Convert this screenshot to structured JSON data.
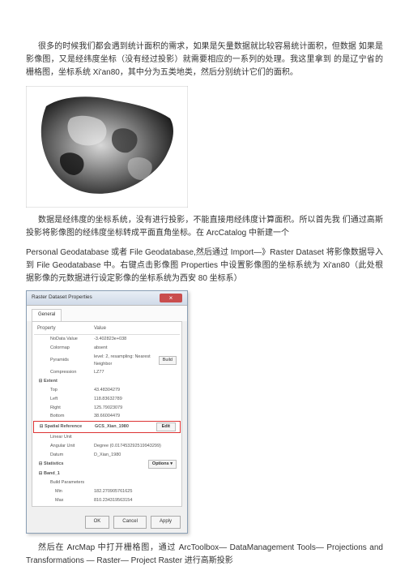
{
  "para1": "很多的时候我们都会遇到统计面积的需求，如果是矢量数据就比较容易统计面积，但数据 如果是影像图，又是经纬度坐标（没有经过投影）就需要相应的一系列的处理。我这里拿到 的是辽宁省的栅格图，坐标系统 Xi'an80，其中分为五类地类，然后分别统计它们的面积。",
  "para2_a": "数据是经纬度的坐标系统，没有进行投影，不能直接用经纬度计算面积。所以首先我 们通过高斯投影将影像图的经纬度坐标转成平面直角坐标。在 ArcCatalog 中新建一个",
  "para2_b": "Personal Geodatabase 或者 File Geodatabase,然后通过 Import—》Raster Dataset 将影像数据导入到 File Geodatabase 中。右键点击影像图 Properties 中设置影像图的坐标系统为 Xi'an80（此处根据影像的元数据进行设定影像的坐标系统为西安 80 坐标系）",
  "para3": "然后在 ArcMap 中打开栅格图，通过 ArcToolbox― DataManagement Tools― Projections and Transformations ― Raster― Project Raster 进行高斯投影",
  "dialog": {
    "title": "Raster Dataset Properties",
    "tab": "General",
    "close": "×",
    "header_prop": "Property",
    "header_val": "Value",
    "rows": [
      {
        "indent": 1,
        "prop": "NoData Value",
        "val": "-3.402823e+038"
      },
      {
        "indent": 1,
        "prop": "Colormap",
        "val": "absent"
      },
      {
        "indent": 1,
        "prop": "Pyramids",
        "val": "level: 2, resampling: Nearest Neighbor",
        "build": true
      },
      {
        "indent": 1,
        "prop": "Compression",
        "val": "LZ77"
      },
      {
        "indent": 0,
        "prop": "Extent",
        "val": "",
        "group": true
      },
      {
        "indent": 1,
        "prop": "Top",
        "val": "43.48304279"
      },
      {
        "indent": 1,
        "prop": "Left",
        "val": "118.83632789"
      },
      {
        "indent": 1,
        "prop": "Right",
        "val": "125.79023079"
      },
      {
        "indent": 1,
        "prop": "Bottom",
        "val": "38.66004479"
      },
      {
        "indent": 0,
        "prop": "Spatial Reference",
        "val": "GCS_Xian_1980",
        "group": true,
        "highlight": true,
        "edit": true
      },
      {
        "indent": 1,
        "prop": "Linear Unit",
        "val": ""
      },
      {
        "indent": 1,
        "prop": "Angular Unit",
        "val": "Degree (0.017453292519943299)"
      },
      {
        "indent": 1,
        "prop": "Datum",
        "val": "D_Xian_1980"
      },
      {
        "indent": 0,
        "prop": "Statistics",
        "val": "",
        "group": true,
        "options": true
      },
      {
        "indent": 0,
        "prop": "Band_1",
        "val": "",
        "group": true
      },
      {
        "indent": 1,
        "prop": "Build Parameters",
        "val": ""
      },
      {
        "indent": 2,
        "prop": "Min",
        "val": "182.270905761625"
      },
      {
        "indent": 2,
        "prop": "Max",
        "val": "810.234319563154"
      }
    ],
    "btn_ok": "OK",
    "btn_cancel": "Cancel",
    "btn_apply": "Apply",
    "btn_edit": "Edit",
    "btn_build": "Build",
    "btn_options": "Options ▾"
  }
}
